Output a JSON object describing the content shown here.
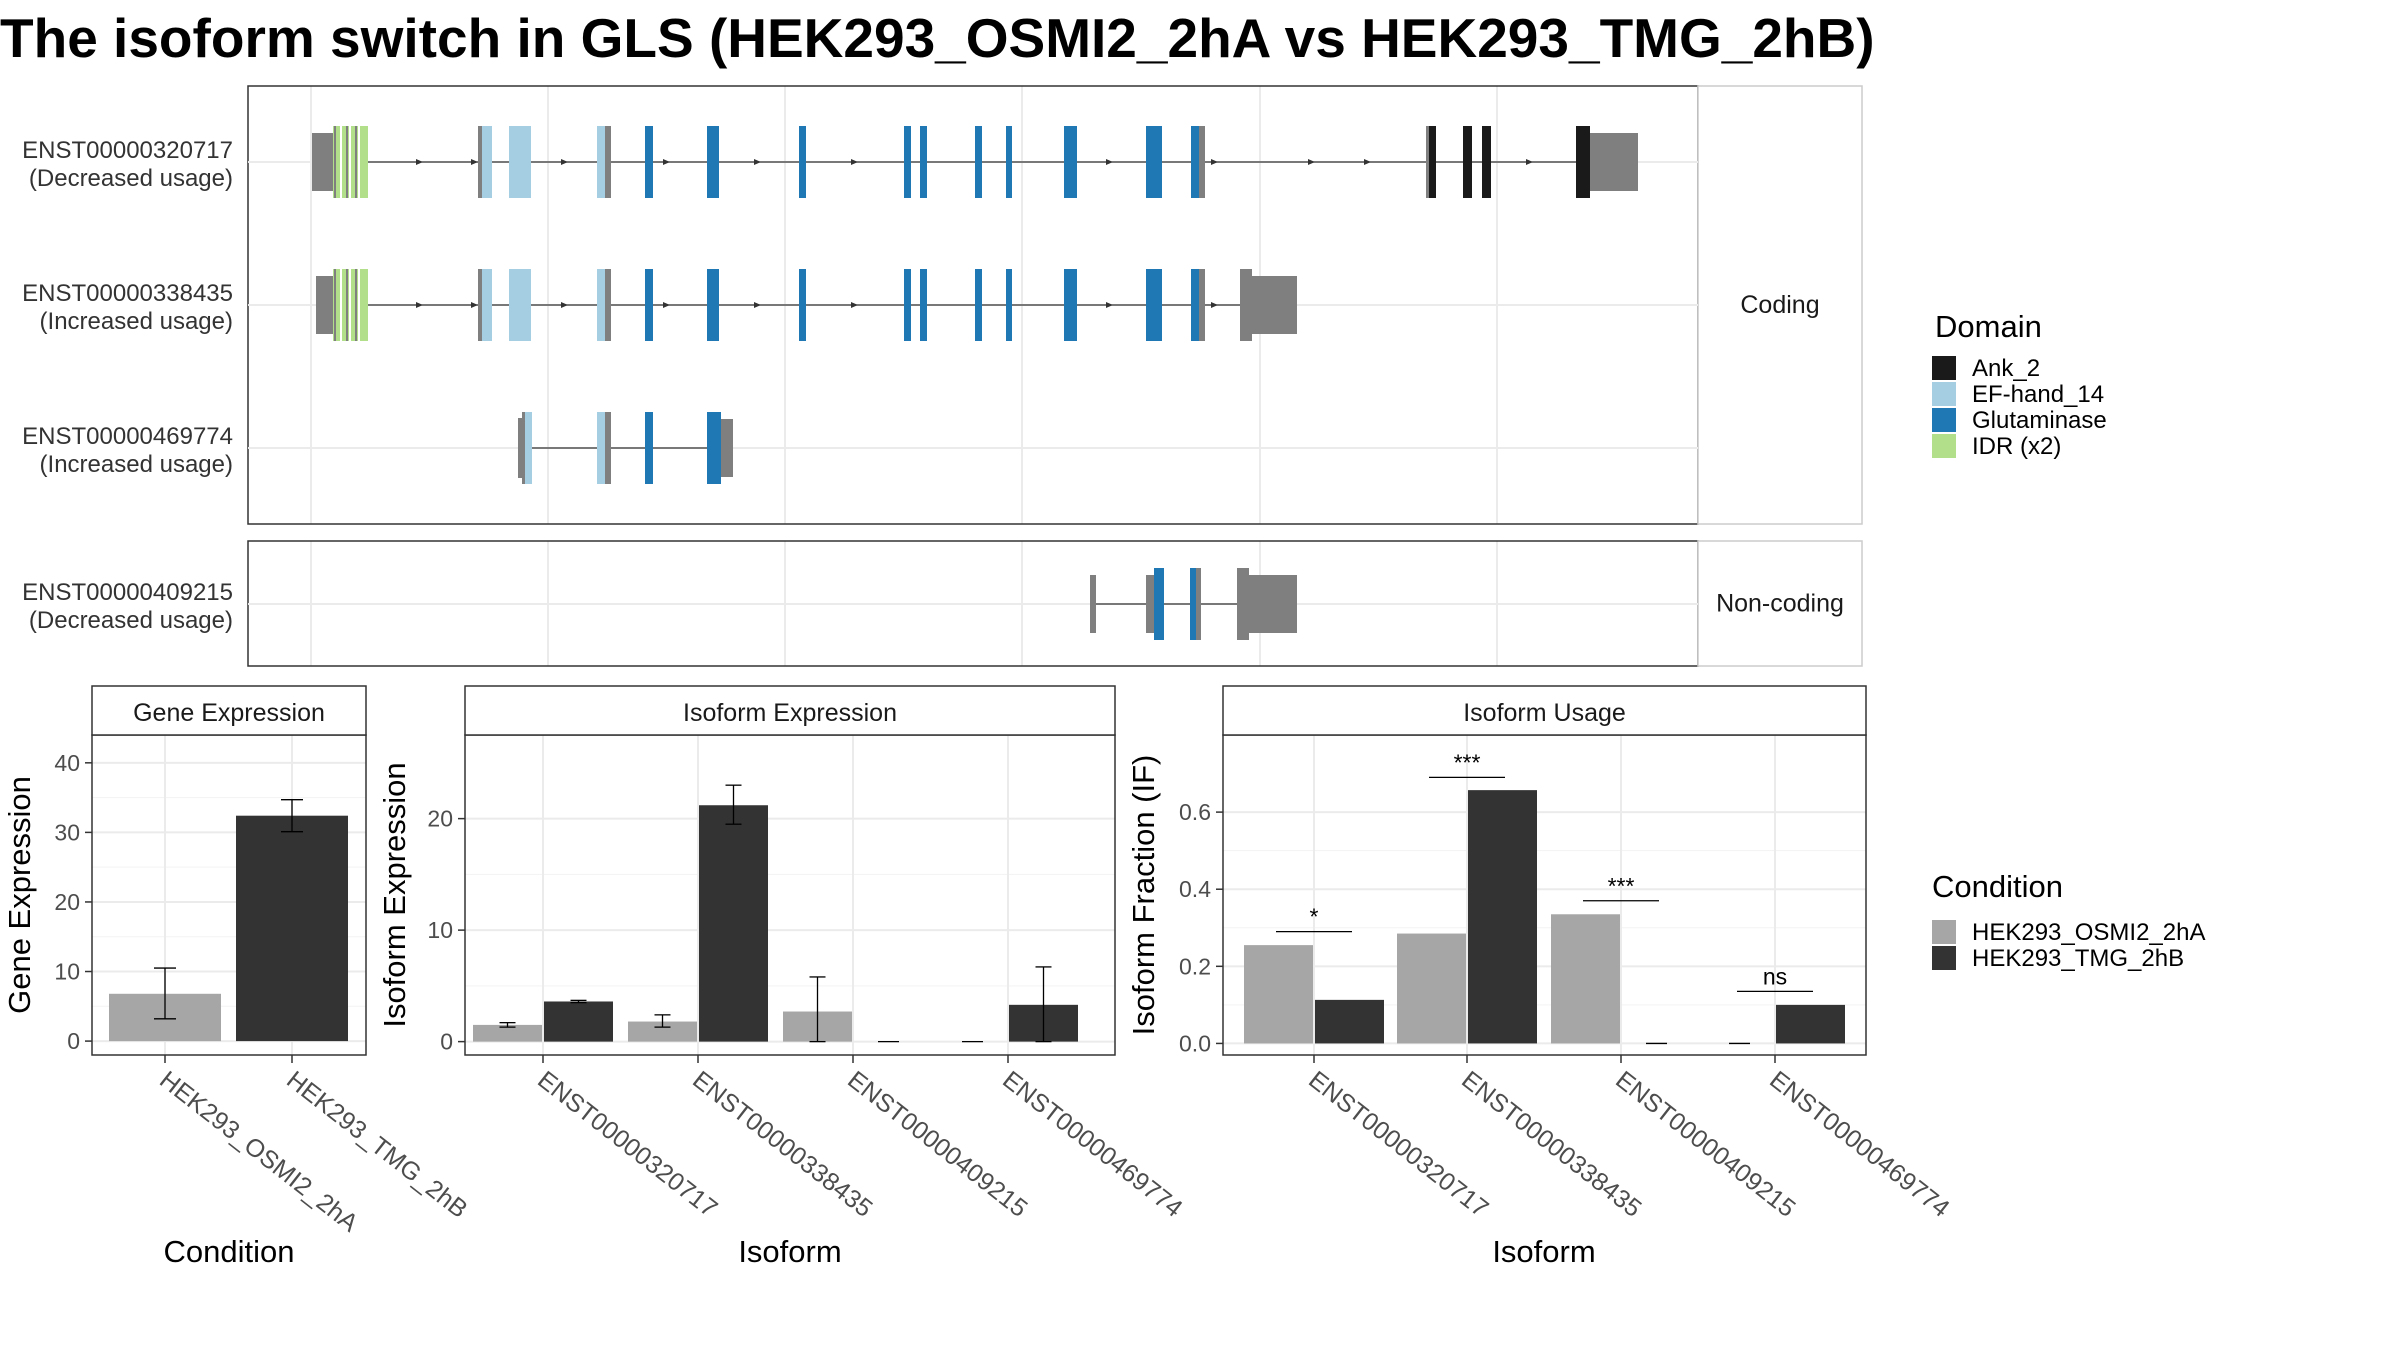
{
  "title": "The isoform switch in GLS (HEK293_OSMI2_2hA vs HEK293_TMG_2hB)",
  "structure": {
    "groups": [
      {
        "label": "Coding",
        "isoforms": [
          {
            "name": "ENST00000320717",
            "usage": "(Decreased usage)"
          },
          {
            "name": "ENST00000338435",
            "usage": "(Increased usage)"
          },
          {
            "name": "ENST00000469774",
            "usage": "(Increased usage)"
          }
        ]
      },
      {
        "label": "Non-coding",
        "isoforms": [
          {
            "name": "ENST00000409215",
            "usage": "(Decreased usage)"
          }
        ]
      }
    ]
  },
  "domain_legend": {
    "title": "Domain",
    "items": [
      {
        "label": "Ank_2",
        "color": "#1a1a1a"
      },
      {
        "label": "EF-hand_14",
        "color": "#a6cee3"
      },
      {
        "label": "Glutaminase",
        "color": "#1f78b4"
      },
      {
        "label": "IDR (x2)",
        "color": "#b2df8a"
      }
    ]
  },
  "condition_legend": {
    "title": "Condition",
    "items": [
      {
        "label": "HEK293_OSMI2_2hA",
        "color": "#a6a6a6"
      },
      {
        "label": "HEK293_TMG_2hB",
        "color": "#333333"
      }
    ]
  },
  "chart_data": [
    {
      "type": "bar",
      "title": "Gene Expression",
      "xlabel": "Condition",
      "ylabel": "Gene Expression",
      "ylim": [
        -2,
        44
      ],
      "yticks": [
        0,
        10,
        20,
        30,
        40
      ],
      "categories": [
        "HEK293_OSMI2_2hA",
        "HEK293_TMG_2hB"
      ],
      "values": [
        6.8,
        32.4
      ],
      "error": [
        [
          3.2,
          10.5
        ],
        [
          30.1,
          34.7
        ]
      ],
      "colors": [
        "#a6a6a6",
        "#333333"
      ]
    },
    {
      "type": "bar",
      "title": "Isoform Expression",
      "xlabel": "Isoform",
      "ylabel": "Isoform Expression",
      "ylim": [
        -1.2,
        27.5
      ],
      "yticks": [
        0,
        10,
        20
      ],
      "categories": [
        "ENST00000320717",
        "ENST00000338435",
        "ENST00000409215",
        "ENST00000469774"
      ],
      "series": [
        {
          "values": [
            1.5,
            1.8,
            2.7,
            0.0
          ],
          "error": [
            [
              1.3,
              1.7
            ],
            [
              1.3,
              2.4
            ],
            [
              0.0,
              5.8
            ],
            [
              0.0,
              0.0
            ]
          ],
          "color": "#a6a6a6"
        },
        {
          "values": [
            3.6,
            21.2,
            0.0,
            3.3
          ],
          "error": [
            [
              3.5,
              3.7
            ],
            [
              19.5,
              23.0
            ],
            [
              0.0,
              0.0
            ],
            [
              0.0,
              6.7
            ]
          ],
          "color": "#333333"
        }
      ]
    },
    {
      "type": "bar",
      "title": "Isoform Usage",
      "xlabel": "Isoform",
      "ylabel": "Isoform Fraction (IF)",
      "ylim": [
        -0.03,
        0.8
      ],
      "yticks": [
        0.0,
        0.2,
        0.4,
        0.6
      ],
      "categories": [
        "ENST00000320717",
        "ENST00000338435",
        "ENST00000409215",
        "ENST00000469774"
      ],
      "series": [
        {
          "values": [
            0.255,
            0.285,
            0.335,
            0.0
          ],
          "color": "#a6a6a6"
        },
        {
          "values": [
            0.113,
            0.657,
            0.0,
            0.1
          ],
          "color": "#333333"
        }
      ],
      "significance": [
        {
          "label": "*",
          "y": 0.29
        },
        {
          "label": "***",
          "y": 0.69
        },
        {
          "label": "***",
          "y": 0.37
        },
        {
          "label": "ns",
          "y": 0.135
        }
      ]
    }
  ]
}
